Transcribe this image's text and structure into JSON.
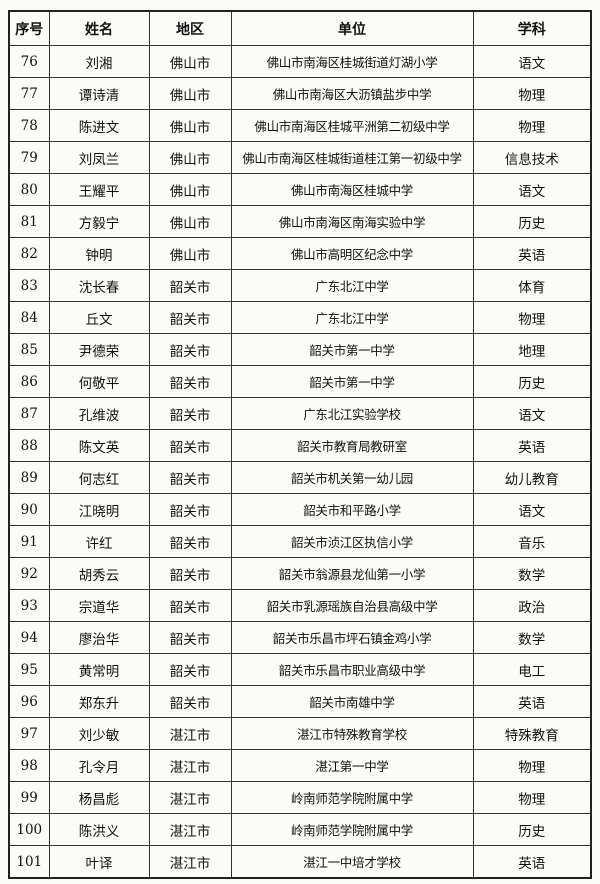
{
  "table": {
    "header": [
      "序号",
      "姓名",
      "地区",
      "单位",
      "学科"
    ],
    "rows": [
      [
        "76",
        "刘湘",
        "佛山市",
        "佛山市南海区桂城街道灯湖小学",
        "语文"
      ],
      [
        "77",
        "谭诗清",
        "佛山市",
        "佛山市南海区大沥镇盐步中学",
        "物理"
      ],
      [
        "78",
        "陈进文",
        "佛山市",
        "佛山市南海区桂城平洲第二初级中学",
        "物理"
      ],
      [
        "79",
        "刘凤兰",
        "佛山市",
        "佛山市南海区桂城街道桂江第一初级中学",
        "信息技术"
      ],
      [
        "80",
        "王耀平",
        "佛山市",
        "佛山市南海区桂城中学",
        "语文"
      ],
      [
        "81",
        "方毅宁",
        "佛山市",
        "佛山市南海区南海实验中学",
        "历史"
      ],
      [
        "82",
        "钟明",
        "佛山市",
        "佛山市高明区纪念中学",
        "英语"
      ],
      [
        "83",
        "沈长春",
        "韶关市",
        "广东北江中学",
        "体育"
      ],
      [
        "84",
        "丘文",
        "韶关市",
        "广东北江中学",
        "物理"
      ],
      [
        "85",
        "尹德荣",
        "韶关市",
        "韶关市第一中学",
        "地理"
      ],
      [
        "86",
        "何敬平",
        "韶关市",
        "韶关市第一中学",
        "历史"
      ],
      [
        "87",
        "孔维波",
        "韶关市",
        "广东北江实验学校",
        "语文"
      ],
      [
        "88",
        "陈文英",
        "韶关市",
        "韶关市教育局教研室",
        "英语"
      ],
      [
        "89",
        "何志红",
        "韶关市",
        "韶关市机关第一幼儿园",
        "幼儿教育"
      ],
      [
        "90",
        "江晓明",
        "韶关市",
        "韶关市和平路小学",
        "语文"
      ],
      [
        "91",
        "许红",
        "韶关市",
        "韶关市浈江区执信小学",
        "音乐"
      ],
      [
        "92",
        "胡秀云",
        "韶关市",
        "韶关市翁源县龙仙第一小学",
        "数学"
      ],
      [
        "93",
        "宗道华",
        "韶关市",
        "韶关市乳源瑶族自治县高级中学",
        "政治"
      ],
      [
        "94",
        "廖治华",
        "韶关市",
        "韶关市乐昌市坪石镇金鸡小学",
        "数学"
      ],
      [
        "95",
        "黄常明",
        "韶关市",
        "韶关市乐昌市职业高级中学",
        "电工"
      ],
      [
        "96",
        "郑东升",
        "韶关市",
        "韶关市南雄中学",
        "英语"
      ],
      [
        "97",
        "刘少敏",
        "湛江市",
        "湛江市特殊教育学校",
        "特殊教育"
      ],
      [
        "98",
        "孔令月",
        "湛江市",
        "湛江第一中学",
        "物理"
      ],
      [
        "99",
        "杨昌彪",
        "湛江市",
        "岭南师范学院附属中学",
        "物理"
      ],
      [
        "100",
        "陈洪义",
        "湛江市",
        "岭南师范学院附属中学",
        "历史"
      ],
      [
        "101",
        "叶译",
        "湛江市",
        "湛江一中培才学校",
        "英语"
      ]
    ]
  }
}
